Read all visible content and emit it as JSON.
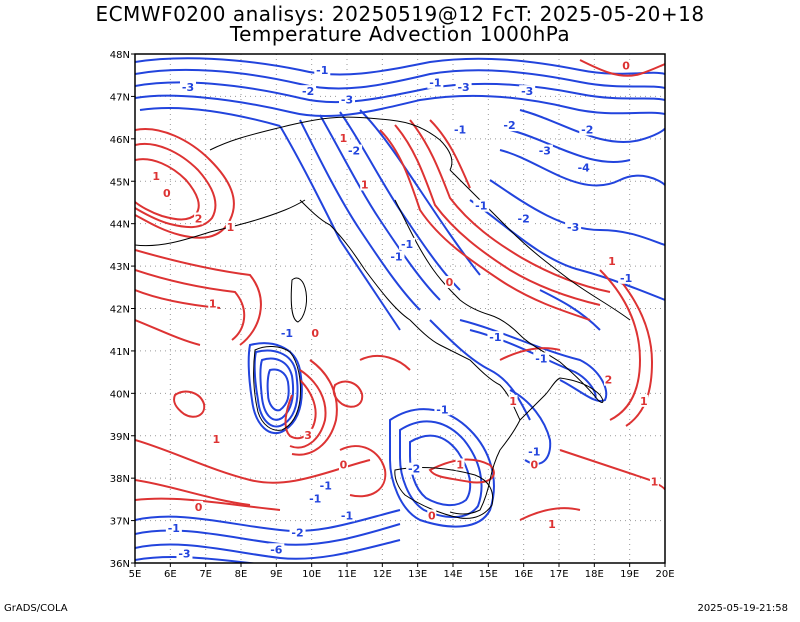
{
  "header": {
    "title_line1": "ECMWF0200 analisys: 20250519@12 FcT: 2025-05-20+18",
    "title_line2": "Temperature Advection 1000hPa"
  },
  "footer": {
    "left": "GrADS/COLA",
    "right": "2025-05-19-21:58"
  },
  "map": {
    "lon_range": [
      5,
      20
    ],
    "lat_range": [
      36,
      48
    ],
    "lon_labels": [
      "5E",
      "6E",
      "7E",
      "8E",
      "9E",
      "10E",
      "11E",
      "12E",
      "13E",
      "14E",
      "15E",
      "16E",
      "17E",
      "18E",
      "19E",
      "20E"
    ],
    "lat_labels": [
      "36N",
      "37N",
      "38N",
      "39N",
      "40N",
      "41N",
      "42N",
      "43N",
      "44N",
      "45N",
      "46N",
      "47N",
      "48N"
    ],
    "grid": "dotted",
    "colors": {
      "negative": "#2244dd",
      "positive": "#dd3333",
      "coast": "#000000",
      "grid": "#999999"
    },
    "contour_labels": [
      {
        "text": "-3",
        "lon": 6.5,
        "lat": 47.2,
        "sign": "neg"
      },
      {
        "text": "-1",
        "lon": 10.3,
        "lat": 47.6,
        "sign": "neg"
      },
      {
        "text": "-2",
        "lon": 9.9,
        "lat": 47.1,
        "sign": "neg"
      },
      {
        "text": "-3",
        "lon": 11.0,
        "lat": 46.9,
        "sign": "neg"
      },
      {
        "text": "-1",
        "lon": 13.5,
        "lat": 47.3,
        "sign": "neg"
      },
      {
        "text": "-3",
        "lon": 14.3,
        "lat": 47.2,
        "sign": "neg"
      },
      {
        "text": "-3",
        "lon": 16.1,
        "lat": 47.1,
        "sign": "neg"
      },
      {
        "text": "-2",
        "lon": 15.6,
        "lat": 46.3,
        "sign": "neg"
      },
      {
        "text": "-1",
        "lon": 14.2,
        "lat": 46.2,
        "sign": "neg"
      },
      {
        "text": "-2",
        "lon": 17.8,
        "lat": 46.2,
        "sign": "neg"
      },
      {
        "text": "-3",
        "lon": 16.6,
        "lat": 45.7,
        "sign": "neg"
      },
      {
        "text": "-4",
        "lon": 17.7,
        "lat": 45.3,
        "sign": "neg"
      },
      {
        "text": "-1",
        "lon": 14.8,
        "lat": 44.4,
        "sign": "neg"
      },
      {
        "text": "-2",
        "lon": 16.0,
        "lat": 44.1,
        "sign": "neg"
      },
      {
        "text": "-3",
        "lon": 17.4,
        "lat": 43.9,
        "sign": "neg"
      },
      {
        "text": "-2",
        "lon": 11.2,
        "lat": 45.7,
        "sign": "neg"
      },
      {
        "text": "-1",
        "lon": 12.7,
        "lat": 43.5,
        "sign": "neg"
      },
      {
        "text": "-1",
        "lon": 12.4,
        "lat": 43.2,
        "sign": "neg"
      },
      {
        "text": "-1",
        "lon": 9.3,
        "lat": 41.4,
        "sign": "neg"
      },
      {
        "text": "-1",
        "lon": 18.9,
        "lat": 42.7,
        "sign": "neg"
      },
      {
        "text": "-1",
        "lon": 15.2,
        "lat": 41.3,
        "sign": "neg"
      },
      {
        "text": "-1",
        "lon": 16.5,
        "lat": 40.8,
        "sign": "neg"
      },
      {
        "text": "-1",
        "lon": 13.7,
        "lat": 39.6,
        "sign": "neg"
      },
      {
        "text": "-1",
        "lon": 16.3,
        "lat": 38.6,
        "sign": "neg"
      },
      {
        "text": "-2",
        "lon": 12.9,
        "lat": 38.2,
        "sign": "neg"
      },
      {
        "text": "-1",
        "lon": 10.1,
        "lat": 37.5,
        "sign": "neg"
      },
      {
        "text": "-1",
        "lon": 11.0,
        "lat": 37.1,
        "sign": "neg"
      },
      {
        "text": "-1",
        "lon": 6.1,
        "lat": 36.8,
        "sign": "neg"
      },
      {
        "text": "-2",
        "lon": 9.6,
        "lat": 36.7,
        "sign": "neg"
      },
      {
        "text": "-3",
        "lon": 6.4,
        "lat": 36.2,
        "sign": "neg"
      },
      {
        "text": "-1",
        "lon": 10.4,
        "lat": 37.8,
        "sign": "neg"
      },
      {
        "text": "-6",
        "lon": 9.0,
        "lat": 36.3,
        "sign": "neg"
      },
      {
        "text": "0",
        "lon": 18.9,
        "lat": 47.7,
        "sign": "pos"
      },
      {
        "text": "1",
        "lon": 10.9,
        "lat": 46.0,
        "sign": "pos"
      },
      {
        "text": "1",
        "lon": 5.6,
        "lat": 45.1,
        "sign": "pos"
      },
      {
        "text": "0",
        "lon": 5.9,
        "lat": 44.7,
        "sign": "pos"
      },
      {
        "text": "2",
        "lon": 6.8,
        "lat": 44.1,
        "sign": "pos"
      },
      {
        "text": "1",
        "lon": 7.7,
        "lat": 43.9,
        "sign": "pos"
      },
      {
        "text": "1",
        "lon": 11.5,
        "lat": 44.9,
        "sign": "pos"
      },
      {
        "text": "1",
        "lon": 18.5,
        "lat": 43.1,
        "sign": "pos"
      },
      {
        "text": "0",
        "lon": 13.9,
        "lat": 42.6,
        "sign": "pos"
      },
      {
        "text": "1",
        "lon": 7.2,
        "lat": 42.1,
        "sign": "pos"
      },
      {
        "text": "0",
        "lon": 10.1,
        "lat": 41.4,
        "sign": "pos"
      },
      {
        "text": "2",
        "lon": 18.4,
        "lat": 40.3,
        "sign": "pos"
      },
      {
        "text": "1",
        "lon": 19.4,
        "lat": 39.8,
        "sign": "pos"
      },
      {
        "text": "1",
        "lon": 15.7,
        "lat": 39.8,
        "sign": "pos"
      },
      {
        "text": "0",
        "lon": 10.9,
        "lat": 38.3,
        "sign": "pos"
      },
      {
        "text": "1",
        "lon": 7.3,
        "lat": 38.9,
        "sign": "pos"
      },
      {
        "text": "3",
        "lon": 9.9,
        "lat": 39.0,
        "sign": "pos"
      },
      {
        "text": "1",
        "lon": 14.2,
        "lat": 38.3,
        "sign": "pos"
      },
      {
        "text": "0",
        "lon": 16.3,
        "lat": 38.3,
        "sign": "pos"
      },
      {
        "text": "0",
        "lon": 13.4,
        "lat": 37.1,
        "sign": "pos"
      },
      {
        "text": "1",
        "lon": 19.7,
        "lat": 37.9,
        "sign": "pos"
      },
      {
        "text": "0",
        "lon": 6.8,
        "lat": 37.3,
        "sign": "pos"
      },
      {
        "text": "1",
        "lon": 16.8,
        "lat": 36.9,
        "sign": "pos"
      }
    ]
  }
}
